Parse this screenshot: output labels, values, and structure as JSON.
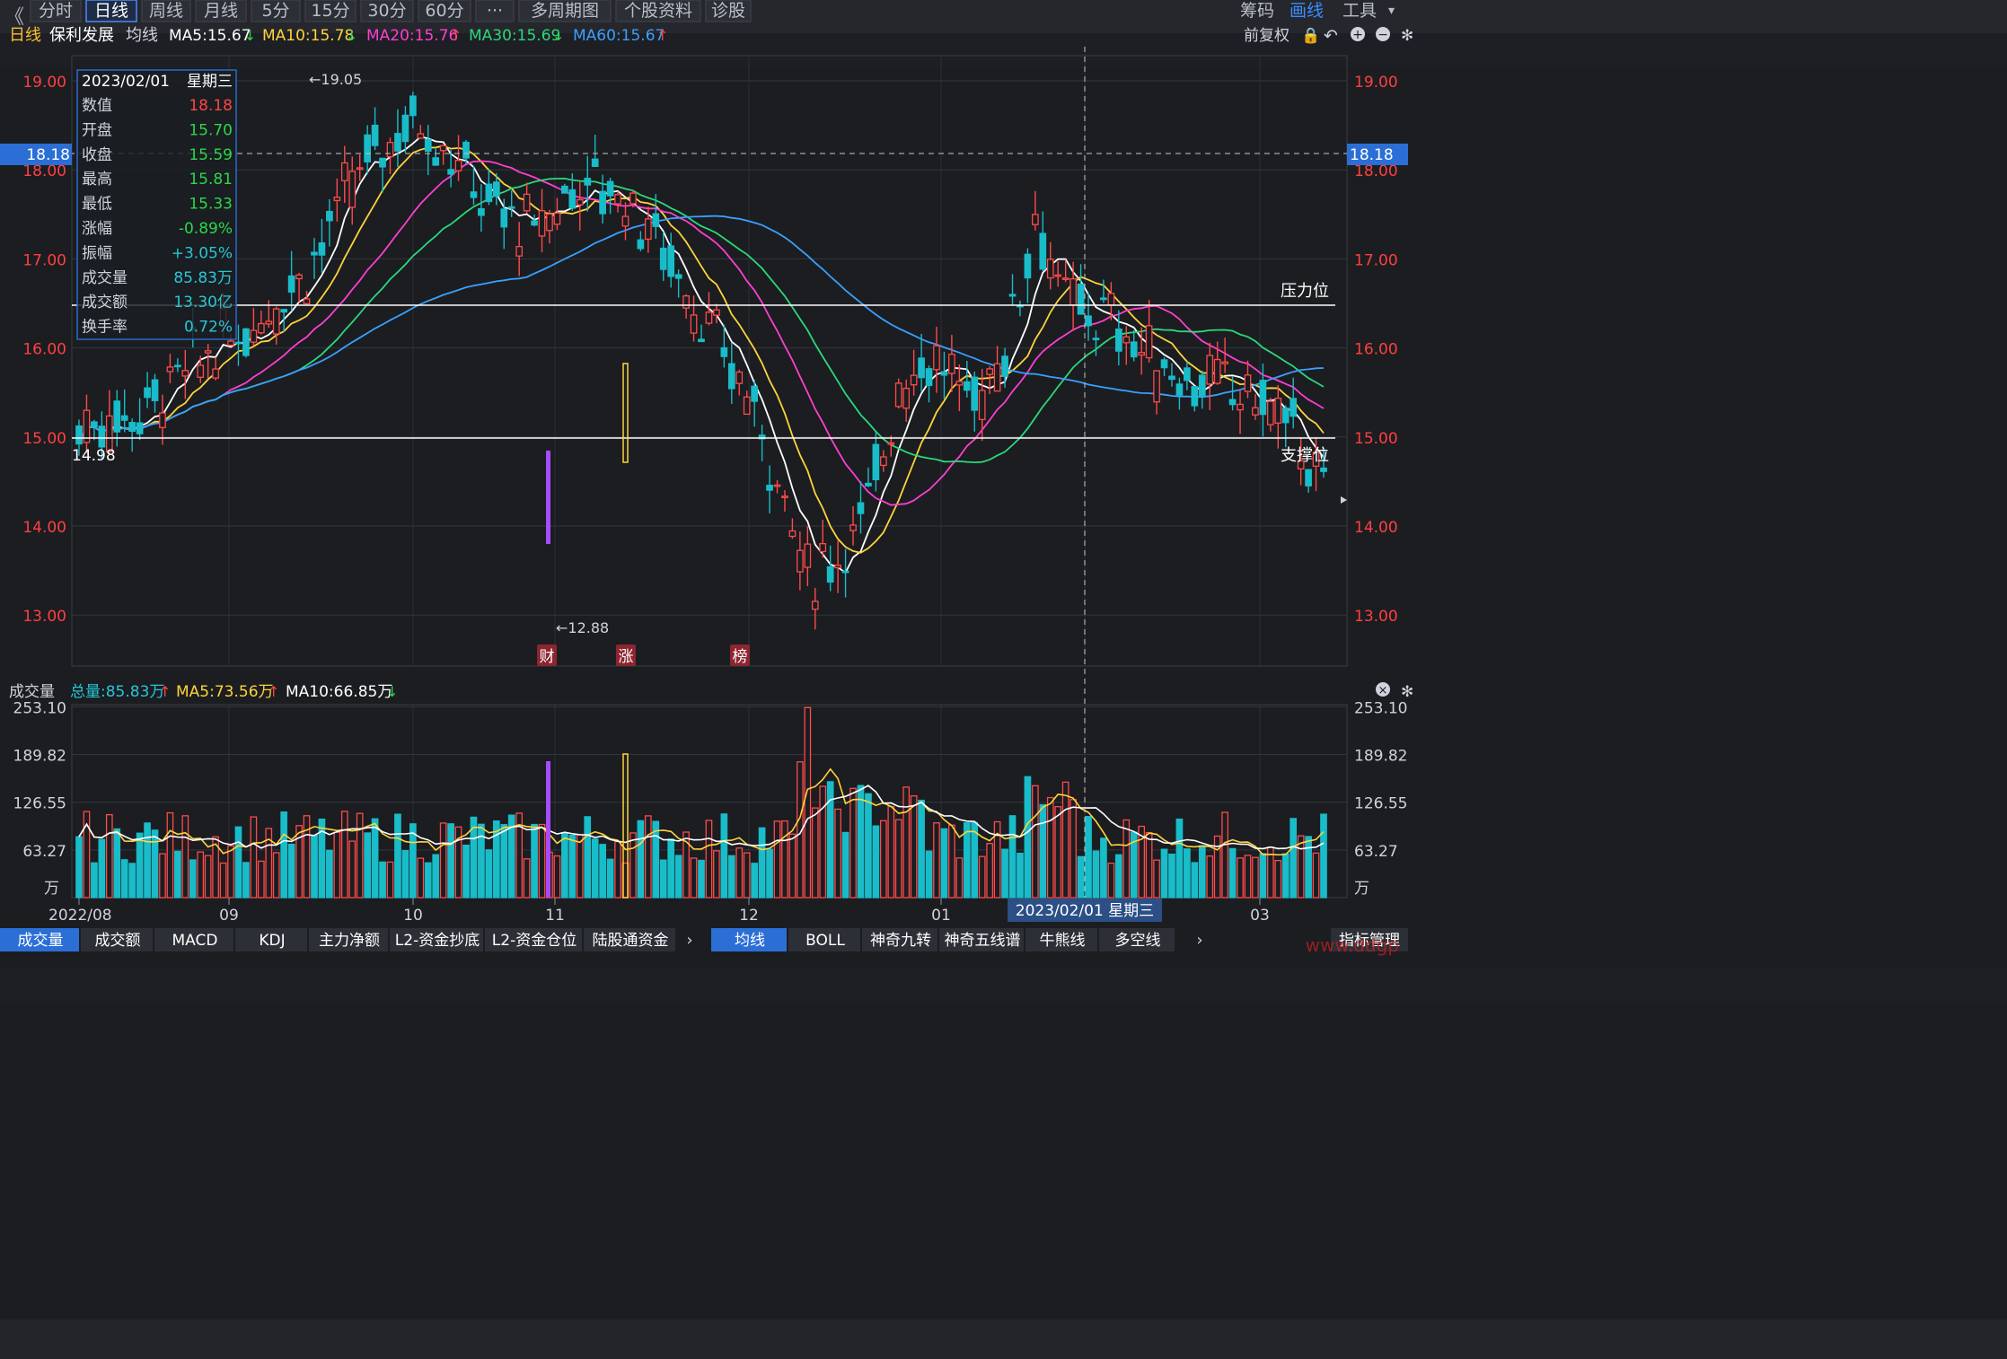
{
  "toolbar": {
    "back_glyph": "《",
    "tabs": [
      "分时",
      "日线",
      "周线",
      "月线",
      "5分",
      "15分",
      "30分",
      "60分",
      "···",
      "多周期图",
      "个股资料",
      "诊股"
    ],
    "active": "日线",
    "right": [
      "筹码",
      "画线",
      "工具"
    ]
  },
  "indicator_bar": {
    "period": "日线",
    "stock": "保利发展",
    "label": "均线",
    "ma": [
      {
        "name": "MA5",
        "value": "15.67",
        "dir": "down",
        "color": "#ffffff"
      },
      {
        "name": "MA10",
        "value": "15.78",
        "dir": "down",
        "color": "#ffd43a"
      },
      {
        "name": "MA20",
        "value": "15.76",
        "dir": "up",
        "color": "#ff3fd0"
      },
      {
        "name": "MA30",
        "value": "15.69",
        "dir": "down",
        "color": "#2bd87a"
      },
      {
        "name": "MA60",
        "value": "15.67",
        "dir": "up",
        "color": "#3aa0ff"
      }
    ],
    "right_label": "前复权"
  },
  "info_box": {
    "date": "2023/02/01",
    "weekday": "星期三",
    "rows": [
      {
        "label": "数值",
        "value": "18.18",
        "color": "#ff4545"
      },
      {
        "label": "开盘",
        "value": "15.70",
        "color": "#2bd84a"
      },
      {
        "label": "收盘",
        "value": "15.59",
        "color": "#2bd84a"
      },
      {
        "label": "最高",
        "value": "15.81",
        "color": "#2bd84a"
      },
      {
        "label": "最低",
        "value": "15.33",
        "color": "#2bd84a"
      },
      {
        "label": "涨幅",
        "value": "-0.89%",
        "color": "#2bd84a"
      },
      {
        "label": "振幅",
        "value": "+3.05%",
        "color": "#27c7d6"
      },
      {
        "label": "成交量",
        "value": "85.83万",
        "color": "#27c7d6"
      },
      {
        "label": "成交额",
        "value": "13.30亿",
        "color": "#27c7d6"
      },
      {
        "label": "换手率",
        "value": "0.72%",
        "color": "#27c7d6"
      }
    ]
  },
  "price_axis": {
    "ticks": [
      "19.00",
      "18.00",
      "17.00",
      "16.00",
      "15.00",
      "14.00",
      "13.00"
    ],
    "cursor_value": "18.18"
  },
  "annotations": {
    "high_label": "←19.05",
    "low_label": "←12.88",
    "left_low": "14.98",
    "resistance": "压力位",
    "support": "支撑位",
    "markers": [
      "财",
      "涨",
      "榜"
    ]
  },
  "volume_bar": {
    "label": "成交量",
    "total": "总量:85.83万",
    "ma5": "MA5:73.56万",
    "ma10": "MA10:66.85万",
    "ticks": [
      "253.10",
      "189.82",
      "126.55",
      "63.27"
    ],
    "unit": "万"
  },
  "date_axis": {
    "labels": [
      "2022/08",
      "09",
      "10",
      "11",
      "12",
      "01",
      "03"
    ],
    "cursor": "2023/02/01 星期三"
  },
  "bottom_tabs_left": [
    "成交量",
    "成交额",
    "MACD",
    "KDJ",
    "主力净额",
    "L2-资金抄底",
    "L2-资金仓位",
    "陆股通资金"
  ],
  "bottom_tabs_right": [
    "均线",
    "BOLL",
    "神奇九转",
    "神奇五线谱",
    "牛熊线",
    "多空线"
  ],
  "bottom_right_button": "指标管理",
  "watermark": "www.ddgp"
}
